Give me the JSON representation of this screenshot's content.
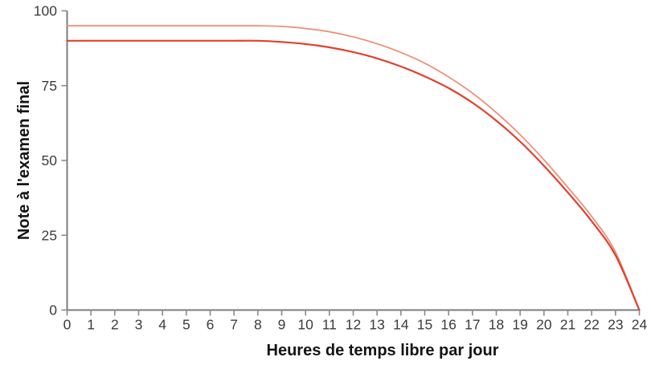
{
  "chart_data": {
    "type": "line",
    "title": "",
    "xlabel": "Heures de temps libre par jour",
    "ylabel": "Note à l'examen final",
    "xlim": [
      0,
      24
    ],
    "ylim": [
      0,
      100
    ],
    "xticks": [
      0,
      1,
      2,
      3,
      4,
      5,
      6,
      7,
      8,
      9,
      10,
      11,
      12,
      13,
      14,
      15,
      16,
      17,
      18,
      19,
      20,
      21,
      22,
      23,
      24
    ],
    "yticks": [
      0,
      25,
      50,
      75,
      100
    ],
    "grid": false,
    "legend_position": "none",
    "x": [
      0,
      1,
      2,
      3,
      4,
      5,
      6,
      7,
      8,
      9,
      10,
      11,
      12,
      13,
      14,
      15,
      16,
      17,
      18,
      19,
      20,
      21,
      22,
      23,
      24
    ],
    "series": [
      {
        "name": "upper-light-curve",
        "color": "#F08A74",
        "stroke_width": 1.7,
        "values": [
          95,
          95,
          95,
          95,
          95,
          95,
          95,
          95,
          95,
          94.8,
          94.1,
          93,
          91.3,
          89,
          86.1,
          82.5,
          77.9,
          72.5,
          66,
          58.6,
          50.2,
          41,
          31.3,
          19.4,
          0
        ]
      },
      {
        "name": "lower-dark-curve",
        "color": "#E2402C",
        "stroke_width": 2.2,
        "values": [
          90,
          90,
          90,
          90,
          90,
          90,
          90,
          90,
          90,
          89.6,
          88.9,
          87.8,
          86.2,
          84.1,
          81.4,
          78.1,
          74.2,
          69.3,
          63.3,
          56.3,
          48.2,
          39.3,
          29.7,
          18.3,
          0
        ]
      }
    ],
    "axis_color": "#7c7c7c",
    "tick_color": "#8a8a8a",
    "tick_label_color": "#3c3c3c",
    "title_color": "#141414",
    "background_color": "#ffffff"
  }
}
